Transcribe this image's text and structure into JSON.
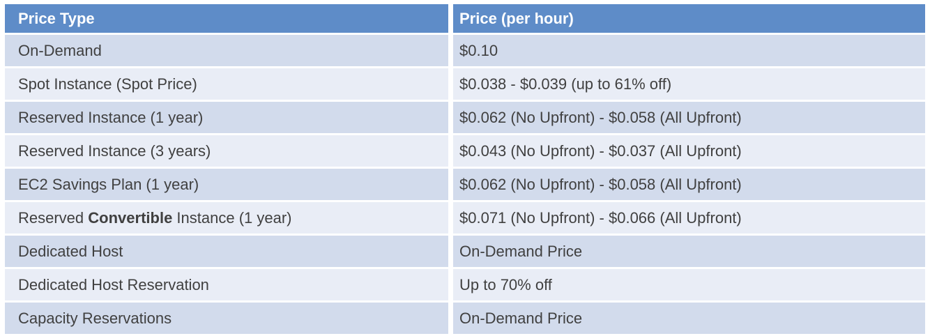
{
  "table": {
    "columns": [
      {
        "label": "Price Type"
      },
      {
        "label": "Price (per hour)"
      }
    ],
    "rows": [
      {
        "type": "On-Demand",
        "price": "$0.10"
      },
      {
        "type": "Spot Instance (Spot Price)",
        "price": "$0.038 - $0.039 (up to 61% off)"
      },
      {
        "type": "Reserved Instance (1 year)",
        "price": "$0.062 (No Upfront) - $0.058 (All Upfront)"
      },
      {
        "type": "Reserved Instance (3 years)",
        "price": "$0.043 (No Upfront) - $0.037 (All Upfront)"
      },
      {
        "type": "EC2 Savings Plan (1 year)",
        "price": "$0.062 (No Upfront) - $0.058 (All Upfront)"
      },
      {
        "type": "Reserved Convertible Instance (1 year)",
        "price": "$0.071 (No Upfront) - $0.066 (All Upfront)",
        "bold_segment": "Convertible"
      },
      {
        "type": "Dedicated Host",
        "price": "On-Demand Price"
      },
      {
        "type": "Dedicated Host Reservation",
        "price": "Up to 70% off"
      },
      {
        "type": "Capacity Reservations",
        "price": "On-Demand Price"
      }
    ]
  },
  "colors": {
    "header_bg": "#5E8CC8",
    "header_text": "#FFFFFF",
    "row_band_dark": "#D2DBEC",
    "row_band_light": "#E9EDF6",
    "body_text": "#404040"
  }
}
